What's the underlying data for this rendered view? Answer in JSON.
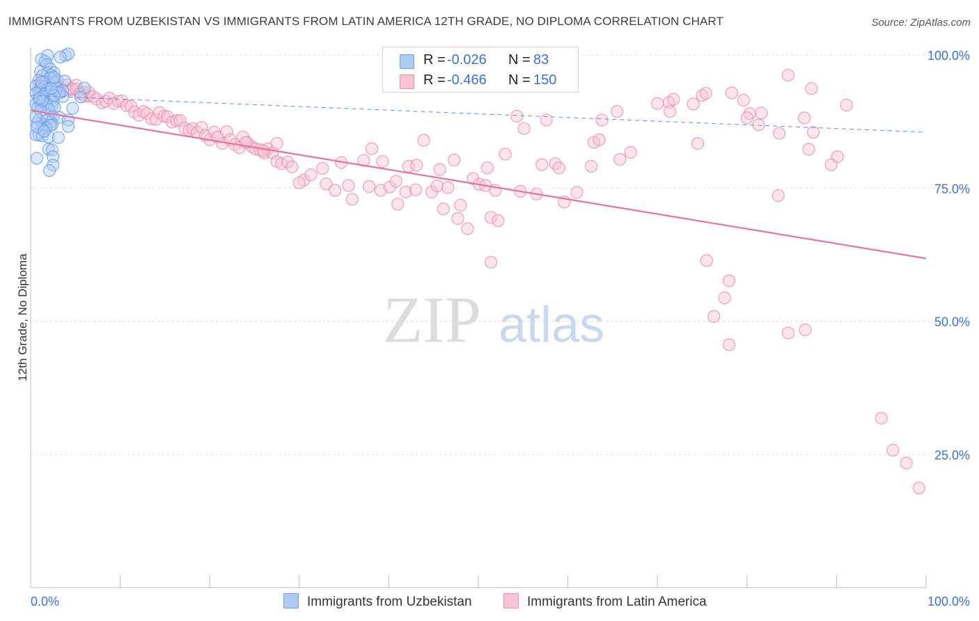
{
  "header": {
    "title": "IMMIGRANTS FROM UZBEKISTAN VS IMMIGRANTS FROM LATIN AMERICA 12TH GRADE, NO DIPLOMA CORRELATION CHART",
    "source": "Source: ZipAtlas.com"
  },
  "watermark": {
    "part1": "ZIP",
    "part2": "atlas"
  },
  "legend": {
    "rows": [
      {
        "r_label": "R =",
        "r_value": "-0.026",
        "n_label": "N =",
        "n_value": "83",
        "color": "#aecbf4",
        "border": "#6f9ee6"
      },
      {
        "r_label": "R =",
        "r_value": "-0.466",
        "n_label": "N =",
        "n_value": "150",
        "color": "#f8c3d2",
        "border": "#eb90ab"
      }
    ]
  },
  "bottom_legend": {
    "items": [
      {
        "label": "Immigrants from Uzbekistan",
        "color": "#aecbf4",
        "border": "#6f9ee6"
      },
      {
        "label": "Immigrants from Latin America",
        "color": "#f8c3d2",
        "border": "#eb90ab"
      }
    ]
  },
  "chart_data": {
    "type": "scatter",
    "title": "IMMIGRANTS FROM UZBEKISTAN VS IMMIGRANTS FROM LATIN AMERICA 12TH GRADE, NO DIPLOMA CORRELATION CHART",
    "xlabel": "",
    "ylabel": "12th Grade, No Diploma",
    "xlim": [
      0,
      100
    ],
    "ylim": [
      0,
      102
    ],
    "x_tick_labels": [
      "0.0%",
      "100.0%"
    ],
    "y_tick_labels": [
      {
        "value": 100,
        "label": "100.0%"
      },
      {
        "value": 75,
        "label": "75.0%"
      },
      {
        "value": 50,
        "label": "50.0%"
      },
      {
        "value": 25,
        "label": "25.0%"
      }
    ],
    "grid": true,
    "series": [
      {
        "name": "Immigrants from Uzbekistan",
        "color": "#6f9ee6",
        "fill": "#aecbf4",
        "r": -0.026,
        "n": 83,
        "trend": {
          "x": [
            0,
            100
          ],
          "y": [
            92.4,
            85.5
          ],
          "style": "dashed"
        },
        "points": [
          [
            1.2,
            99.2
          ],
          [
            1.9,
            99.9
          ],
          [
            3.9,
            99.9
          ],
          [
            4.2,
            100.2
          ],
          [
            3.3,
            99.6
          ],
          [
            1.6,
            98.8
          ],
          [
            1.8,
            98.2
          ],
          [
            2.2,
            97.4
          ],
          [
            2.6,
            96.7
          ],
          [
            1.1,
            96.9
          ],
          [
            1.9,
            96.6
          ],
          [
            2.3,
            96.2
          ],
          [
            1.3,
            96.1
          ],
          [
            2.2,
            95.7
          ],
          [
            0.9,
            95.2
          ],
          [
            3.0,
            95.2
          ],
          [
            3.8,
            95.1
          ],
          [
            1.6,
            94.9
          ],
          [
            2.7,
            94.9
          ],
          [
            0.6,
            94.2
          ],
          [
            1.2,
            94.2
          ],
          [
            1.5,
            94.0
          ],
          [
            6.0,
            93.8
          ],
          [
            2.9,
            93.8
          ],
          [
            1.9,
            93.6
          ],
          [
            3.6,
            93.3
          ],
          [
            1.1,
            93.6
          ],
          [
            0.9,
            93.2
          ],
          [
            2.2,
            93.2
          ],
          [
            2.8,
            93.0
          ],
          [
            1.5,
            92.6
          ],
          [
            0.6,
            92.8
          ],
          [
            1.4,
            92.2
          ],
          [
            3.6,
            92.2
          ],
          [
            5.6,
            92.1
          ],
          [
            2.3,
            91.8
          ],
          [
            0.9,
            91.6
          ],
          [
            2.5,
            91.4
          ],
          [
            1.7,
            91.0
          ],
          [
            0.6,
            90.8
          ],
          [
            1.2,
            90.6
          ],
          [
            1.8,
            90.6
          ],
          [
            2.4,
            90.5
          ],
          [
            0.8,
            90.1
          ],
          [
            2.7,
            90.2
          ],
          [
            4.7,
            90.0
          ],
          [
            2.0,
            89.8
          ],
          [
            1.1,
            89.5
          ],
          [
            2.5,
            88.4
          ],
          [
            3.2,
            88.3
          ],
          [
            0.9,
            87.8
          ],
          [
            1.8,
            87.7
          ],
          [
            1.4,
            87.0
          ],
          [
            4.2,
            87.8
          ],
          [
            2.3,
            87.4
          ],
          [
            2.4,
            86.9
          ],
          [
            1.7,
            86.4
          ],
          [
            4.2,
            86.6
          ],
          [
            1.7,
            86.2
          ],
          [
            2.2,
            86.8
          ],
          [
            1.3,
            86.1
          ],
          [
            0.9,
            85.0
          ],
          [
            0.6,
            85.0
          ],
          [
            1.3,
            84.8
          ],
          [
            0.7,
            87.2
          ],
          [
            0.7,
            86.5
          ],
          [
            2.0,
            84.6
          ],
          [
            1.5,
            85.7
          ],
          [
            3.1,
            84.5
          ],
          [
            0.6,
            88.4
          ],
          [
            2.0,
            82.3
          ],
          [
            2.4,
            82.2
          ],
          [
            2.5,
            80.9
          ],
          [
            0.7,
            80.6
          ],
          [
            2.5,
            79.3
          ],
          [
            2.1,
            78.3
          ],
          [
            3.2,
            92.9
          ],
          [
            1.2,
            94.9
          ],
          [
            2.6,
            95.8
          ],
          [
            2.6,
            92.4
          ],
          [
            1.3,
            91.4
          ],
          [
            2.3,
            93.7
          ],
          [
            1.0,
            91.9
          ]
        ]
      },
      {
        "name": "Immigrants from Latin America",
        "color": "#eb90ab",
        "fill": "#f8c3d2",
        "r": -0.466,
        "n": 150,
        "trend": {
          "x": [
            0,
            100
          ],
          "y": [
            89.6,
            61.8
          ],
          "style": "solid"
        },
        "points": [
          [
            0.9,
            94.4
          ],
          [
            1.3,
            93.7
          ],
          [
            1.8,
            93.9
          ],
          [
            2.3,
            94.8
          ],
          [
            2.7,
            93.2
          ],
          [
            3.2,
            93.6
          ],
          [
            3.6,
            93.6
          ],
          [
            4.1,
            94.4
          ],
          [
            4.6,
            93.5
          ],
          [
            5.1,
            94.3
          ],
          [
            5.5,
            92.9
          ],
          [
            6.0,
            93.0
          ],
          [
            6.5,
            92.3
          ],
          [
            0.9,
            92.9
          ],
          [
            1.3,
            93.4
          ],
          [
            1.8,
            92.6
          ],
          [
            2.3,
            93.5
          ],
          [
            2.7,
            94.5
          ],
          [
            3.6,
            93.2
          ],
          [
            4.1,
            93.4
          ],
          [
            4.6,
            93.7
          ],
          [
            5.1,
            93.6
          ],
          [
            5.5,
            92.7
          ],
          [
            6.0,
            92.3
          ],
          [
            6.5,
            93.0
          ],
          [
            7.0,
            92.2
          ],
          [
            7.4,
            91.7
          ],
          [
            8.0,
            91.0
          ],
          [
            8.4,
            91.3
          ],
          [
            8.8,
            91.9
          ],
          [
            9.3,
            90.9
          ],
          [
            9.8,
            91.3
          ],
          [
            10.2,
            91.4
          ],
          [
            10.7,
            90.5
          ],
          [
            11.2,
            90.4
          ],
          [
            11.6,
            89.3
          ],
          [
            12.1,
            88.7
          ],
          [
            12.6,
            89.4
          ],
          [
            13.0,
            89.0
          ],
          [
            13.5,
            88.0
          ],
          [
            14.0,
            87.9
          ],
          [
            14.4,
            89.2
          ],
          [
            14.9,
            88.5
          ],
          [
            15.3,
            88.4
          ],
          [
            15.8,
            87.4
          ],
          [
            16.3,
            87.7
          ],
          [
            16.7,
            87.7
          ],
          [
            17.2,
            86.3
          ],
          [
            17.7,
            85.9
          ],
          [
            18.1,
            86.2
          ],
          [
            18.6,
            85.5
          ],
          [
            19.1,
            86.4
          ],
          [
            19.5,
            84.9
          ],
          [
            20.0,
            84.1
          ],
          [
            20.5,
            85.5
          ],
          [
            20.9,
            84.6
          ],
          [
            21.4,
            83.4
          ],
          [
            21.9,
            85.6
          ],
          [
            22.3,
            84.1
          ],
          [
            22.8,
            83.2
          ],
          [
            23.3,
            82.6
          ],
          [
            23.7,
            84.6
          ],
          [
            24.2,
            83.6
          ],
          [
            24.7,
            82.8
          ],
          [
            25.1,
            82.4
          ],
          [
            25.6,
            82.2
          ],
          [
            26.1,
            81.6
          ],
          [
            26.5,
            82.4
          ],
          [
            27.0,
            81.6
          ],
          [
            27.5,
            83.4
          ],
          [
            24.0,
            83.6
          ],
          [
            26.0,
            82.0
          ],
          [
            27.5,
            80.0
          ],
          [
            28.0,
            79.6
          ],
          [
            28.7,
            79.9
          ],
          [
            29.2,
            79.0
          ],
          [
            30.5,
            76.5
          ],
          [
            31.3,
            77.5
          ],
          [
            30.0,
            76.0
          ],
          [
            32.6,
            78.7
          ],
          [
            33.0,
            75.8
          ],
          [
            34.0,
            74.6
          ],
          [
            34.7,
            79.8
          ],
          [
            35.5,
            75.5
          ],
          [
            35.9,
            72.9
          ],
          [
            37.2,
            80.2
          ],
          [
            37.8,
            75.3
          ],
          [
            38.1,
            82.4
          ],
          [
            39.1,
            74.6
          ],
          [
            39.3,
            80.0
          ],
          [
            40.1,
            75.2
          ],
          [
            40.8,
            76.3
          ],
          [
            41.0,
            72.0
          ],
          [
            41.9,
            74.3
          ],
          [
            42.2,
            79.1
          ],
          [
            43.0,
            74.7
          ],
          [
            43.1,
            79.3
          ],
          [
            43.9,
            84.0
          ],
          [
            44.8,
            74.3
          ],
          [
            45.4,
            75.4
          ],
          [
            45.7,
            78.5
          ],
          [
            46.1,
            71.1
          ],
          [
            46.6,
            75.1
          ],
          [
            47.3,
            80.3
          ],
          [
            47.7,
            69.3
          ],
          [
            48.0,
            71.8
          ],
          [
            48.8,
            67.4
          ],
          [
            49.4,
            76.8
          ],
          [
            50.1,
            75.7
          ],
          [
            50.8,
            75.5
          ],
          [
            51.0,
            78.8
          ],
          [
            51.4,
            69.5
          ],
          [
            51.9,
            74.6
          ],
          [
            52.2,
            68.9
          ],
          [
            53.0,
            81.4
          ],
          [
            54.3,
            88.5
          ],
          [
            51.4,
            61.1
          ],
          [
            55.1,
            86.2
          ],
          [
            56.5,
            73.9
          ],
          [
            58.6,
            79.6
          ],
          [
            59.0,
            78.8
          ],
          [
            57.6,
            87.8
          ],
          [
            62.9,
            83.6
          ],
          [
            63.5,
            84.1
          ],
          [
            63.8,
            87.8
          ],
          [
            62.6,
            79.1
          ],
          [
            65.8,
            80.4
          ],
          [
            67.0,
            81.7
          ],
          [
            65.5,
            89.4
          ],
          [
            70.0,
            90.9
          ],
          [
            71.3,
            91.1
          ],
          [
            71.8,
            91.7
          ],
          [
            71.4,
            89.4
          ],
          [
            74.0,
            90.8
          ],
          [
            75.0,
            92.4
          ],
          [
            74.5,
            83.4
          ],
          [
            75.4,
            92.8
          ],
          [
            78.3,
            92.9
          ],
          [
            79.6,
            91.5
          ],
          [
            80.3,
            89.0
          ],
          [
            81.6,
            89.1
          ],
          [
            81.3,
            86.9
          ],
          [
            80.0,
            88.2
          ],
          [
            83.6,
            85.3
          ],
          [
            83.5,
            73.6
          ],
          [
            84.6,
            96.2
          ],
          [
            86.4,
            88.2
          ],
          [
            87.4,
            85.5
          ],
          [
            86.9,
            82.3
          ],
          [
            87.2,
            93.7
          ],
          [
            90.1,
            80.9
          ],
          [
            91.1,
            90.6
          ],
          [
            89.4,
            79.4
          ],
          [
            78.0,
            57.6
          ],
          [
            77.5,
            54.4
          ],
          [
            76.3,
            50.9
          ],
          [
            75.5,
            61.4
          ],
          [
            78.0,
            45.6
          ],
          [
            95.0,
            31.8
          ],
          [
            96.3,
            25.8
          ],
          [
            86.5,
            48.4
          ],
          [
            84.6,
            47.8
          ],
          [
            97.8,
            23.4
          ],
          [
            99.2,
            18.7
          ],
          [
            57.1,
            79.4
          ],
          [
            54.7,
            74.4
          ],
          [
            59.6,
            72.4
          ],
          [
            61.0,
            74.2
          ]
        ]
      }
    ]
  }
}
